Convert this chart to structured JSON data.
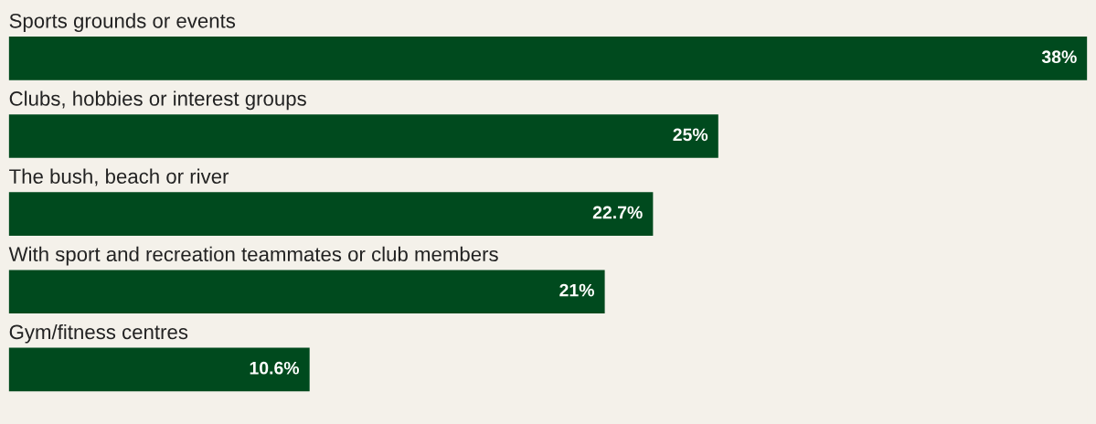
{
  "chart_data": {
    "type": "bar",
    "orientation": "horizontal",
    "categories": [
      "Sports grounds or events",
      "Clubs, hobbies or interest groups",
      "The bush, beach or river",
      "With sport and recreation teammates or club members",
      "Gym/fitness centres"
    ],
    "values": [
      38,
      25,
      22.7,
      21,
      10.6
    ],
    "value_labels": [
      "38%",
      "25%",
      "22.7%",
      "21%",
      "10.6%"
    ],
    "color": "#004a1e"
  }
}
